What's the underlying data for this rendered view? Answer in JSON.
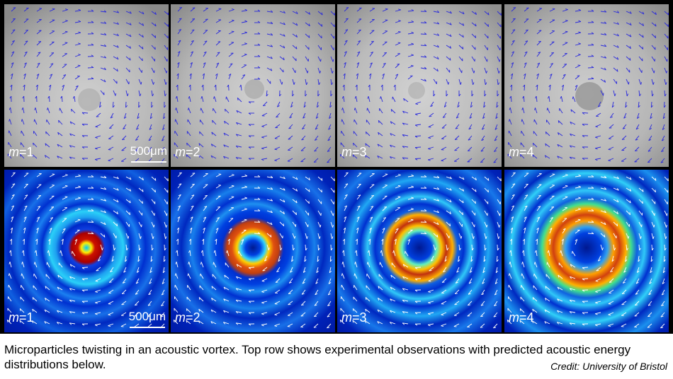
{
  "panels_top": [
    {
      "label_var": "m",
      "label_eq": "=1",
      "scale": "500μm"
    },
    {
      "label_var": "m",
      "label_eq": "=2"
    },
    {
      "label_var": "m",
      "label_eq": "=3"
    },
    {
      "label_var": "m",
      "label_eq": "=4"
    }
  ],
  "panels_bottom": [
    {
      "label_var": "m",
      "label_eq": "=1",
      "scale": "500μm"
    },
    {
      "label_var": "m",
      "label_eq": "=2"
    },
    {
      "label_var": "m",
      "label_eq": "=3"
    },
    {
      "label_var": "m",
      "label_eq": "=4"
    }
  ],
  "caption": "Microparticles twisting in an acoustic vortex. Top row shows experimental observations with predicted acoustic energy distributions below.",
  "credit": "Credit: University of Bristol",
  "colors": {
    "arrow_top": "#2a2adc",
    "arrow_bottom": "#ffffff",
    "field_background": "#0a2fd8",
    "hot_ring": "#d04010"
  }
}
